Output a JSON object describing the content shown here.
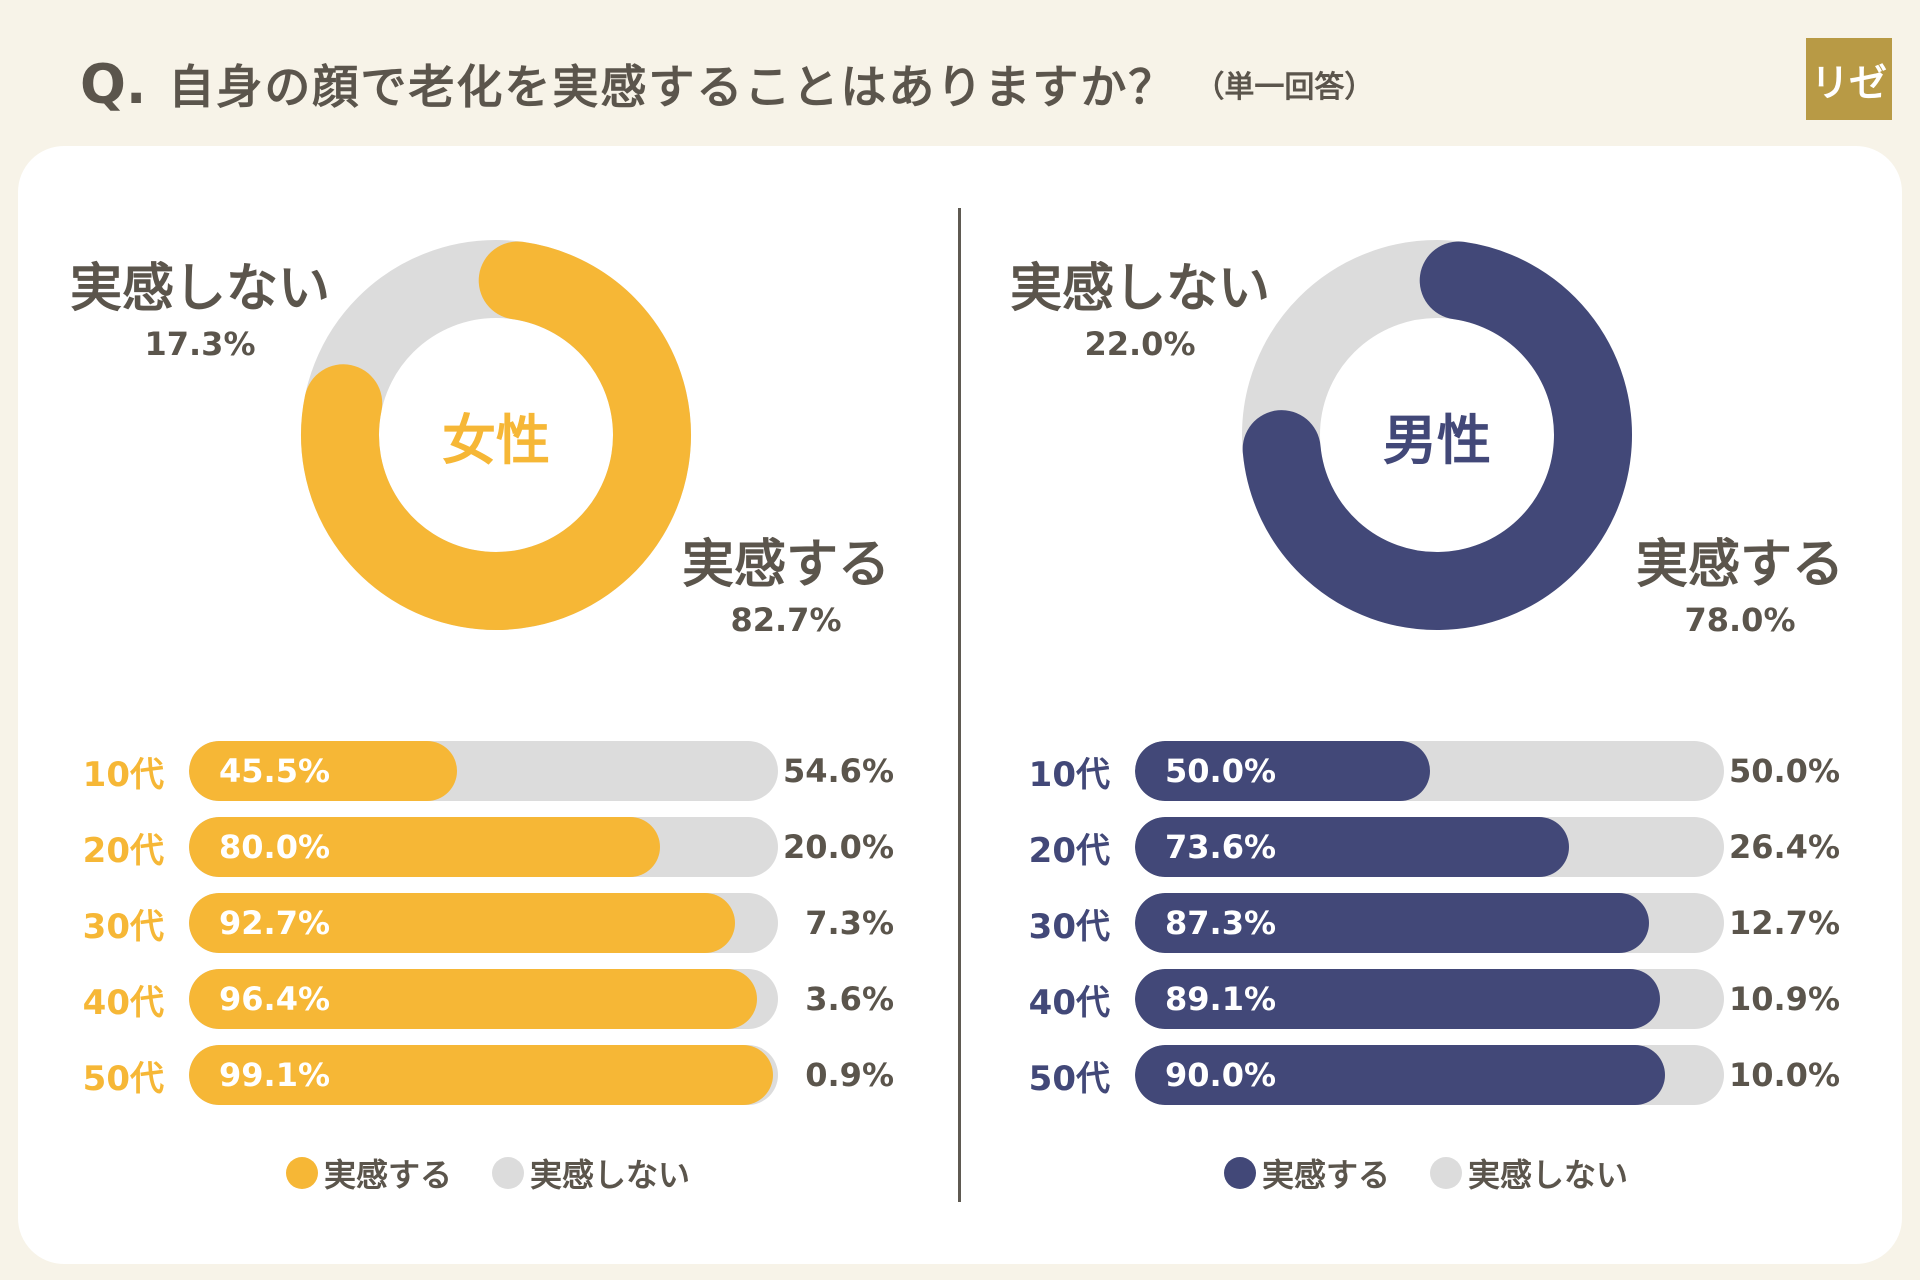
{
  "title": {
    "q_mark": "Q.",
    "question": "自身の顔で老化を実感することはありますか？",
    "note": "（単一回答）",
    "logo": "リゼ"
  },
  "colors": {
    "female": "#f6b736",
    "male": "#424878",
    "gray": "#dcdcdc",
    "text": "#5b554c"
  },
  "chart_data": [
    {
      "type": "pie",
      "title": "女性",
      "categories": [
        "実感する",
        "実感しない"
      ],
      "values": [
        82.7,
        17.3
      ],
      "labels": [
        "82.7%",
        "17.3%"
      ]
    },
    {
      "type": "pie",
      "title": "男性",
      "categories": [
        "実感する",
        "実感しない"
      ],
      "values": [
        78.0,
        22.0
      ],
      "labels": [
        "78.0%",
        "22.0%"
      ]
    },
    {
      "type": "bar",
      "title": "女性",
      "stacked": true,
      "orientation": "horizontal",
      "categories": [
        "10代",
        "20代",
        "30代",
        "40代",
        "50代"
      ],
      "series": [
        {
          "name": "実感する",
          "values": [
            45.5,
            80.0,
            92.7,
            96.4,
            99.1
          ],
          "labels": [
            "45.5%",
            "80.0%",
            "92.7%",
            "96.4%",
            "99.1%"
          ]
        },
        {
          "name": "実感しない",
          "values": [
            54.6,
            20.0,
            7.3,
            3.6,
            0.9
          ],
          "labels": [
            "54.6%",
            "20.0%",
            "7.3%",
            "3.6%",
            "0.9%"
          ]
        }
      ]
    },
    {
      "type": "bar",
      "title": "男性",
      "stacked": true,
      "orientation": "horizontal",
      "categories": [
        "10代",
        "20代",
        "30代",
        "40代",
        "50代"
      ],
      "series": [
        {
          "name": "実感する",
          "values": [
            50.0,
            73.6,
            87.3,
            89.1,
            90.0
          ],
          "labels": [
            "50.0%",
            "73.6%",
            "87.3%",
            "89.1%",
            "90.0%"
          ]
        },
        {
          "name": "実感しない",
          "values": [
            50.0,
            26.4,
            12.7,
            10.9,
            10.0
          ],
          "labels": [
            "50.0%",
            "26.4%",
            "12.7%",
            "10.9%",
            "10.0%"
          ]
        }
      ]
    }
  ],
  "legend": {
    "yes": "実感する",
    "no": "実感しない"
  }
}
